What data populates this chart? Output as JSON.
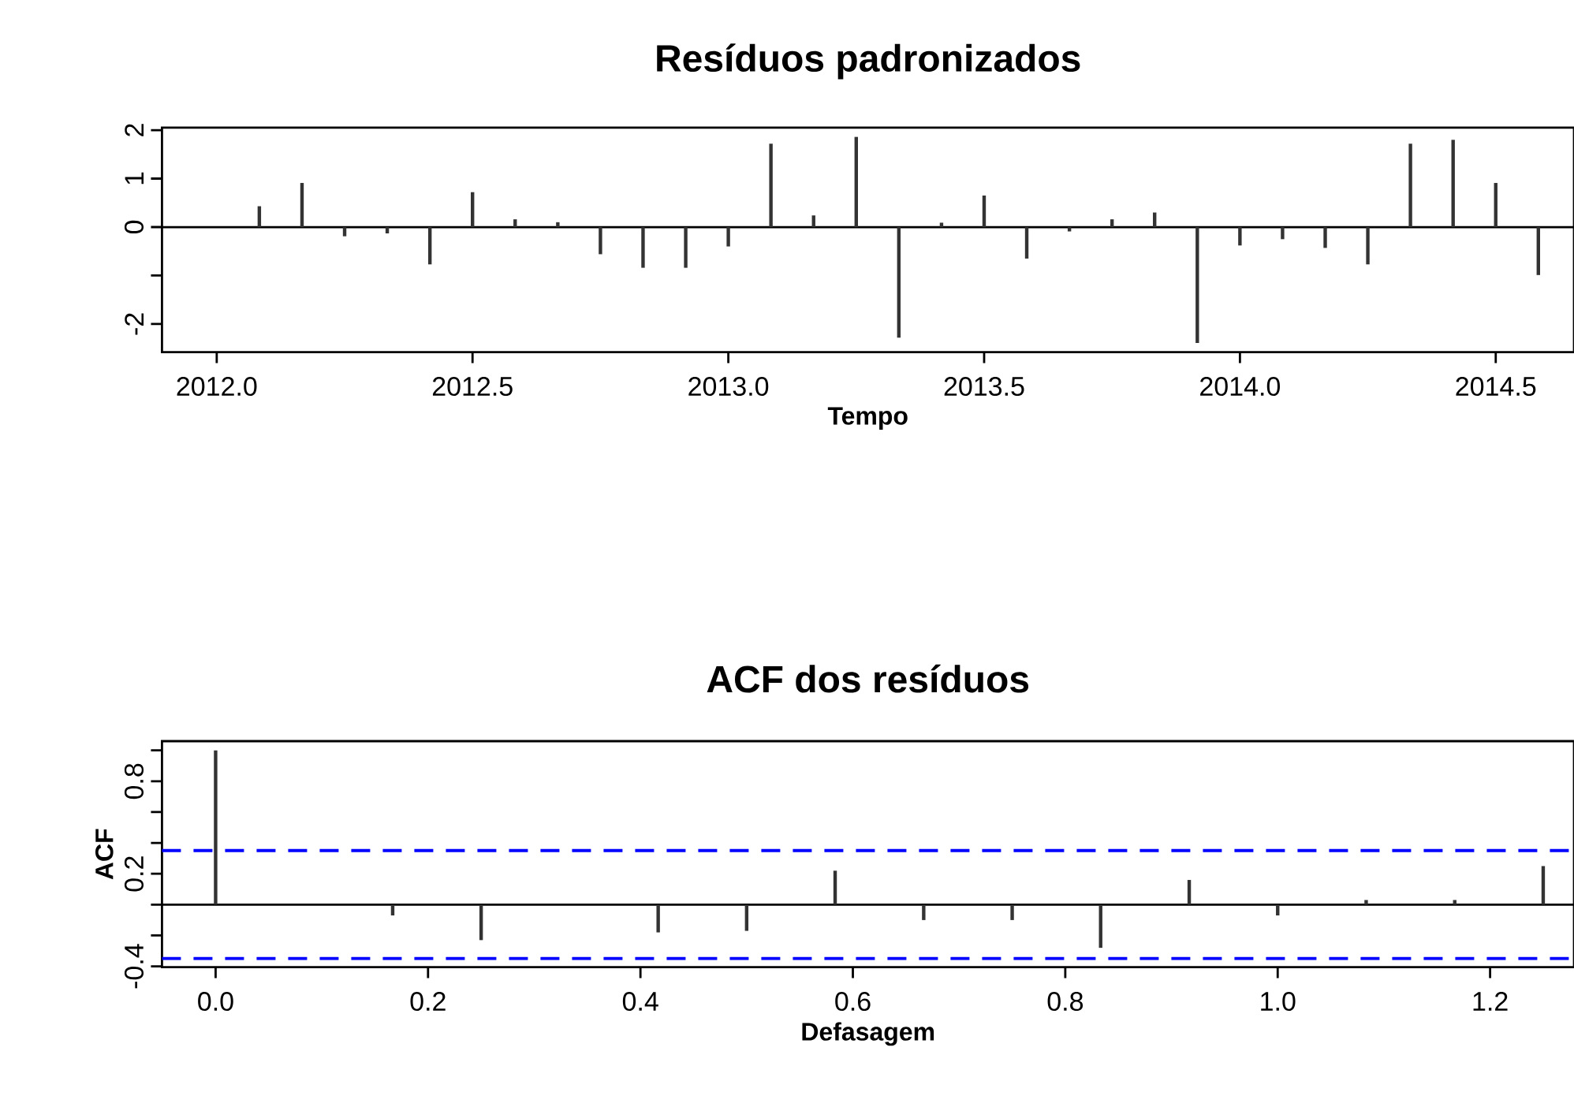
{
  "chart_data": [
    {
      "type": "bar",
      "title": "Resíduos padronizados",
      "xlabel": "Tempo",
      "color": "#333333",
      "x": [
        2012.0833,
        2012.1667,
        2012.25,
        2012.3333,
        2012.4167,
        2012.5,
        2012.5833,
        2012.6667,
        2012.75,
        2012.8333,
        2012.9167,
        2013.0,
        2013.0833,
        2013.1667,
        2013.25,
        2013.3333,
        2013.4167,
        2013.5,
        2013.5833,
        2013.6667,
        2013.75,
        2013.8333,
        2013.9167,
        2014.0,
        2014.0833,
        2014.1667,
        2014.25,
        2014.3333,
        2014.4167,
        2014.5,
        2014.5833
      ],
      "values": [
        0.43,
        0.91,
        -0.19,
        -0.13,
        -0.77,
        0.72,
        0.16,
        0.1,
        -0.56,
        -0.84,
        -0.84,
        -0.4,
        1.72,
        0.24,
        1.86,
        -2.28,
        0.09,
        0.65,
        -0.65,
        -0.09,
        0.16,
        0.3,
        -2.39,
        -0.38,
        -0.25,
        -0.43,
        -0.77,
        1.72,
        1.8,
        0.91,
        -0.99
      ],
      "xlim": [
        2011.893,
        2014.653
      ],
      "ylim": [
        -2.58,
        2.05
      ],
      "xticks": [
        {
          "value": 2012.0,
          "label": "2012.0"
        },
        {
          "value": 2012.5,
          "label": "2012.5"
        },
        {
          "value": 2013.0,
          "label": "2013.0"
        },
        {
          "value": 2013.5,
          "label": "2013.5"
        },
        {
          "value": 2014.0,
          "label": "2014.0"
        },
        {
          "value": 2014.5,
          "label": "2014.5"
        }
      ],
      "yticks": [
        2,
        1,
        0,
        {
          "value": -1,
          "label": null
        },
        -2
      ],
      "ref_lines": [
        {
          "axis": "y",
          "value": 0,
          "color": "#000000",
          "line_style": "solid"
        }
      ]
    },
    {
      "type": "bar",
      "title": "ACF dos resíduos",
      "xlabel": "Defasagem",
      "ylabel": "ACF",
      "color": "#333333",
      "x": [
        0,
        0.0833,
        0.1667,
        0.25,
        0.3333,
        0.4167,
        0.5,
        0.5833,
        0.6667,
        0.75,
        0.8333,
        0.9167,
        1.0,
        1.0833,
        1.1667,
        1.25
      ],
      "values": [
        1.0,
        0,
        -0.07,
        -0.23,
        0,
        -0.18,
        -0.17,
        0.22,
        -0.1,
        -0.1,
        -0.28,
        0.16,
        -0.07,
        0.03,
        0.03,
        0.25
      ],
      "xlim": [
        -0.0505,
        1.279
      ],
      "ylim": [
        -0.405,
        1.06
      ],
      "xticks": [
        {
          "value": 0.0,
          "label": "0.0"
        },
        {
          "value": 0.2,
          "label": "0.2"
        },
        {
          "value": 0.4,
          "label": "0.4"
        },
        {
          "value": 0.6,
          "label": "0.6"
        },
        {
          "value": 0.8,
          "label": "0.8"
        },
        {
          "value": 1.0,
          "label": "1.0"
        },
        {
          "value": 1.2,
          "label": "1.2"
        }
      ],
      "yticks": [
        {
          "value": 1.0,
          "label": null
        },
        {
          "value": 0.8,
          "label": "0.8"
        },
        {
          "value": 0.6,
          "label": null
        },
        {
          "value": 0.4,
          "label": null
        },
        {
          "value": 0.2,
          "label": "0.2"
        },
        {
          "value": 0.0,
          "label": null
        },
        {
          "value": -0.2,
          "label": null
        },
        {
          "value": -0.4,
          "label": "-0.4"
        }
      ],
      "ref_lines": [
        {
          "axis": "y",
          "value": 0,
          "color": "#000000",
          "line_style": "solid"
        },
        {
          "axis": "y",
          "value": 0.35,
          "color": "#0000ff",
          "line_style": "dashed"
        },
        {
          "axis": "y",
          "value": -0.35,
          "color": "#0000ff",
          "line_style": "dashed"
        }
      ]
    }
  ]
}
